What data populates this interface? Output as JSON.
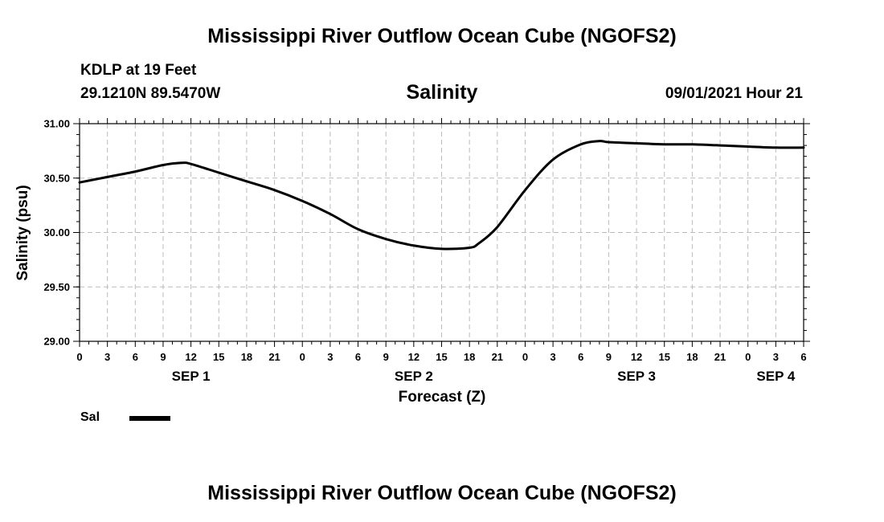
{
  "header": {
    "title": "Mississippi River Outflow Ocean Cube (NGOFS2)",
    "station": "KDLP at 19 Feet",
    "coords": "29.1210N  89.5470W",
    "variable": "Salinity",
    "datetime": "09/01/2021 Hour 21"
  },
  "footer": {
    "title": "Mississippi River Outflow Ocean Cube (NGOFS2)"
  },
  "legend": {
    "label": "Sal"
  },
  "chart_data": {
    "type": "line",
    "title": "Salinity",
    "xlabel": "Forecast (Z)",
    "ylabel": "Salinity (psu)",
    "xlim": [
      0,
      78
    ],
    "ylim": [
      29.0,
      31.0
    ],
    "yticks": [
      "29.00",
      "29.50",
      "30.00",
      "30.50",
      "31.00"
    ],
    "xticks": [
      "0",
      "3",
      "6",
      "9",
      "12",
      "15",
      "18",
      "21",
      "0",
      "3",
      "6",
      "9",
      "12",
      "15",
      "18",
      "21",
      "0",
      "3",
      "6",
      "9",
      "12",
      "15",
      "18",
      "21",
      "0",
      "3",
      "6"
    ],
    "day_labels": [
      {
        "label": "SEP 1",
        "hour": 12
      },
      {
        "label": "SEP 2",
        "hour": 36
      },
      {
        "label": "SEP 3",
        "hour": 60
      },
      {
        "label": "SEP 4",
        "hour": 75
      }
    ],
    "grid": true,
    "series": [
      {
        "name": "Sal",
        "x": [
          0,
          3,
          6,
          9,
          11,
          12,
          15,
          18,
          21,
          24,
          27,
          30,
          33,
          36,
          39,
          42,
          43,
          45,
          48,
          51,
          54,
          56,
          57,
          60,
          63,
          66,
          69,
          72,
          75,
          78
        ],
        "values": [
          30.46,
          30.51,
          30.56,
          30.62,
          30.64,
          30.63,
          30.55,
          30.47,
          30.39,
          30.29,
          30.17,
          30.03,
          29.94,
          29.88,
          29.85,
          29.86,
          29.9,
          30.05,
          30.39,
          30.67,
          30.81,
          30.84,
          30.83,
          30.82,
          30.81,
          30.81,
          30.8,
          30.79,
          30.78,
          30.78
        ]
      }
    ]
  }
}
